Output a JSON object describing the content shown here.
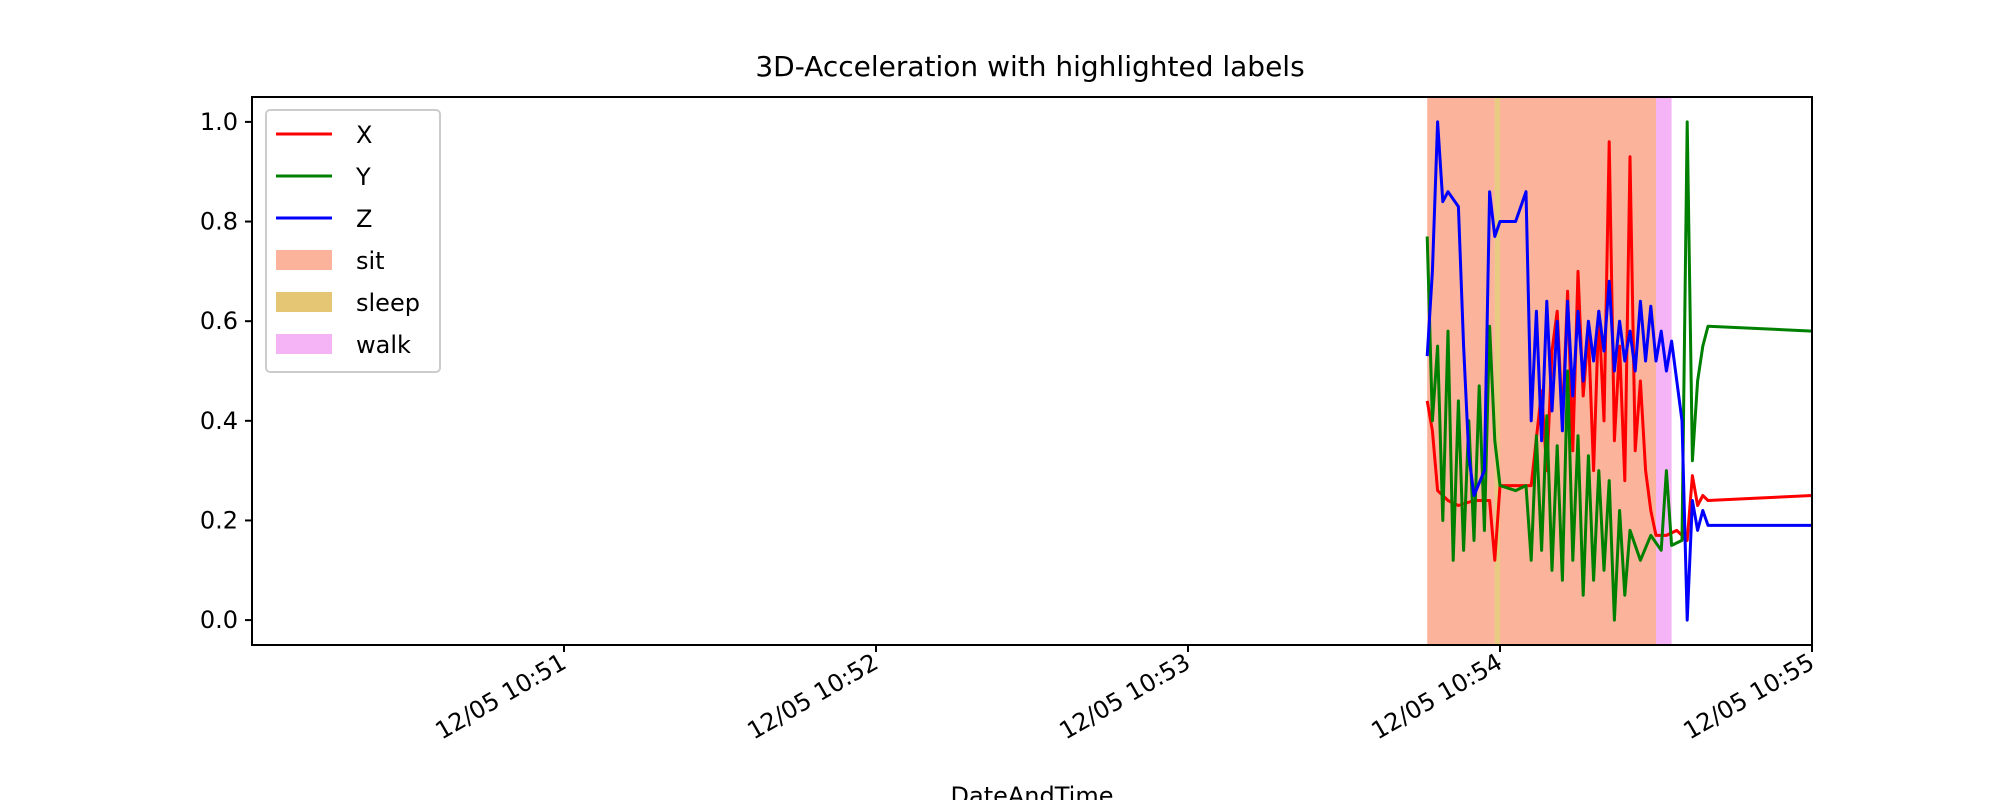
{
  "chart_data": {
    "type": "line",
    "title": "3D-Acceleration with highlighted labels",
    "xlabel": "DateAndTime",
    "ylabel": "",
    "x_range": [
      "12/05 10:50:00",
      "12/05 10:55:00"
    ],
    "ylim": [
      -0.05,
      1.05
    ],
    "x_tick_labels": [
      "12/05 10:51",
      "12/05 10:52",
      "12/05 10:53",
      "12/05 10:54",
      "12/05 10:55"
    ],
    "x_tick_positions": [
      "12/05 10:51:00",
      "12/05 10:52:00",
      "12/05 10:53:00",
      "12/05 10:54:00",
      "12/05 10:55:00"
    ],
    "y_ticks": [
      0.0,
      0.2,
      0.4,
      0.6,
      0.8,
      1.0
    ],
    "y_tick_labels": [
      "0.0",
      "0.2",
      "0.4",
      "0.6",
      "0.8",
      "1.0"
    ],
    "grid": false,
    "legend_position": "upper-left",
    "series": [
      {
        "name": "X",
        "color": "#ff0000",
        "points": [
          [
            "12/05 10:53:46",
            0.44
          ],
          [
            "12/05 10:53:47",
            0.38
          ],
          [
            "12/05 10:53:48",
            0.26
          ],
          [
            "12/05 10:53:50",
            0.24
          ],
          [
            "12/05 10:53:52",
            0.23
          ],
          [
            "12/05 10:53:55",
            0.24
          ],
          [
            "12/05 10:53:58",
            0.24
          ],
          [
            "12/05 10:53:59",
            0.12
          ],
          [
            "12/05 10:54:00",
            0.27
          ],
          [
            "12/05 10:54:03",
            0.27
          ],
          [
            "12/05 10:54:06",
            0.27
          ],
          [
            "12/05 10:54:08",
            0.46
          ],
          [
            "12/05 10:54:09",
            0.3
          ],
          [
            "12/05 10:54:10",
            0.54
          ],
          [
            "12/05 10:54:11",
            0.62
          ],
          [
            "12/05 10:54:12",
            0.4
          ],
          [
            "12/05 10:54:13",
            0.66
          ],
          [
            "12/05 10:54:14",
            0.34
          ],
          [
            "12/05 10:54:15",
            0.7
          ],
          [
            "12/05 10:54:16",
            0.45
          ],
          [
            "12/05 10:54:17",
            0.58
          ],
          [
            "12/05 10:54:18",
            0.3
          ],
          [
            "12/05 10:54:19",
            0.62
          ],
          [
            "12/05 10:54:20",
            0.4
          ],
          [
            "12/05 10:54:21",
            0.96
          ],
          [
            "12/05 10:54:22",
            0.36
          ],
          [
            "12/05 10:54:23",
            0.55
          ],
          [
            "12/05 10:54:24",
            0.28
          ],
          [
            "12/05 10:54:25",
            0.93
          ],
          [
            "12/05 10:54:26",
            0.34
          ],
          [
            "12/05 10:54:27",
            0.48
          ],
          [
            "12/05 10:54:28",
            0.3
          ],
          [
            "12/05 10:54:29",
            0.22
          ],
          [
            "12/05 10:54:30",
            0.17
          ],
          [
            "12/05 10:54:32",
            0.17
          ],
          [
            "12/05 10:54:34",
            0.18
          ],
          [
            "12/05 10:54:36",
            0.16
          ],
          [
            "12/05 10:54:37",
            0.29
          ],
          [
            "12/05 10:54:38",
            0.23
          ],
          [
            "12/05 10:54:39",
            0.25
          ],
          [
            "12/05 10:54:40",
            0.24
          ],
          [
            "12/05 10:54:50",
            0.245
          ],
          [
            "12/05 10:55:00",
            0.25
          ]
        ]
      },
      {
        "name": "Y",
        "color": "#008000",
        "points": [
          [
            "12/05 10:53:46",
            0.77
          ],
          [
            "12/05 10:53:47",
            0.4
          ],
          [
            "12/05 10:53:48",
            0.55
          ],
          [
            "12/05 10:53:49",
            0.2
          ],
          [
            "12/05 10:53:50",
            0.58
          ],
          [
            "12/05 10:53:51",
            0.12
          ],
          [
            "12/05 10:53:52",
            0.44
          ],
          [
            "12/05 10:53:53",
            0.14
          ],
          [
            "12/05 10:53:54",
            0.4
          ],
          [
            "12/05 10:53:55",
            0.16
          ],
          [
            "12/05 10:53:56",
            0.47
          ],
          [
            "12/05 10:53:57",
            0.18
          ],
          [
            "12/05 10:53:58",
            0.59
          ],
          [
            "12/05 10:53:59",
            0.36
          ],
          [
            "12/05 10:54:00",
            0.27
          ],
          [
            "12/05 10:54:03",
            0.26
          ],
          [
            "12/05 10:54:05",
            0.27
          ],
          [
            "12/05 10:54:06",
            0.12
          ],
          [
            "12/05 10:54:07",
            0.37
          ],
          [
            "12/05 10:54:08",
            0.14
          ],
          [
            "12/05 10:54:09",
            0.41
          ],
          [
            "12/05 10:54:10",
            0.1
          ],
          [
            "12/05 10:54:11",
            0.35
          ],
          [
            "12/05 10:54:12",
            0.08
          ],
          [
            "12/05 10:54:13",
            0.5
          ],
          [
            "12/05 10:54:14",
            0.12
          ],
          [
            "12/05 10:54:15",
            0.37
          ],
          [
            "12/05 10:54:16",
            0.05
          ],
          [
            "12/05 10:54:17",
            0.33
          ],
          [
            "12/05 10:54:18",
            0.08
          ],
          [
            "12/05 10:54:19",
            0.3
          ],
          [
            "12/05 10:54:20",
            0.1
          ],
          [
            "12/05 10:54:21",
            0.28
          ],
          [
            "12/05 10:54:22",
            0.0
          ],
          [
            "12/05 10:54:23",
            0.22
          ],
          [
            "12/05 10:54:24",
            0.05
          ],
          [
            "12/05 10:54:25",
            0.18
          ],
          [
            "12/05 10:54:27",
            0.12
          ],
          [
            "12/05 10:54:29",
            0.17
          ],
          [
            "12/05 10:54:31",
            0.14
          ],
          [
            "12/05 10:54:32",
            0.3
          ],
          [
            "12/05 10:54:33",
            0.15
          ],
          [
            "12/05 10:54:35",
            0.16
          ],
          [
            "12/05 10:54:36",
            1.0
          ],
          [
            "12/05 10:54:37",
            0.32
          ],
          [
            "12/05 10:54:38",
            0.48
          ],
          [
            "12/05 10:54:39",
            0.55
          ],
          [
            "12/05 10:54:40",
            0.59
          ],
          [
            "12/05 10:55:00",
            0.58
          ]
        ]
      },
      {
        "name": "Z",
        "color": "#0000ff",
        "points": [
          [
            "12/05 10:53:46",
            0.53
          ],
          [
            "12/05 10:53:47",
            0.7
          ],
          [
            "12/05 10:53:48",
            1.0
          ],
          [
            "12/05 10:53:49",
            0.84
          ],
          [
            "12/05 10:53:50",
            0.86
          ],
          [
            "12/05 10:53:52",
            0.83
          ],
          [
            "12/05 10:53:53",
            0.55
          ],
          [
            "12/05 10:53:54",
            0.33
          ],
          [
            "12/05 10:53:55",
            0.25
          ],
          [
            "12/05 10:53:57",
            0.3
          ],
          [
            "12/05 10:53:58",
            0.86
          ],
          [
            "12/05 10:53:59",
            0.77
          ],
          [
            "12/05 10:54:00",
            0.8
          ],
          [
            "12/05 10:54:03",
            0.8
          ],
          [
            "12/05 10:54:05",
            0.86
          ],
          [
            "12/05 10:54:06",
            0.4
          ],
          [
            "12/05 10:54:07",
            0.62
          ],
          [
            "12/05 10:54:08",
            0.36
          ],
          [
            "12/05 10:54:09",
            0.64
          ],
          [
            "12/05 10:54:10",
            0.42
          ],
          [
            "12/05 10:54:11",
            0.6
          ],
          [
            "12/05 10:54:12",
            0.38
          ],
          [
            "12/05 10:54:13",
            0.64
          ],
          [
            "12/05 10:54:14",
            0.45
          ],
          [
            "12/05 10:54:15",
            0.62
          ],
          [
            "12/05 10:54:16",
            0.48
          ],
          [
            "12/05 10:54:17",
            0.6
          ],
          [
            "12/05 10:54:18",
            0.52
          ],
          [
            "12/05 10:54:19",
            0.62
          ],
          [
            "12/05 10:54:20",
            0.54
          ],
          [
            "12/05 10:54:21",
            0.68
          ],
          [
            "12/05 10:54:22",
            0.5
          ],
          [
            "12/05 10:54:23",
            0.6
          ],
          [
            "12/05 10:54:24",
            0.52
          ],
          [
            "12/05 10:54:25",
            0.58
          ],
          [
            "12/05 10:54:26",
            0.5
          ],
          [
            "12/05 10:54:27",
            0.64
          ],
          [
            "12/05 10:54:28",
            0.52
          ],
          [
            "12/05 10:54:29",
            0.63
          ],
          [
            "12/05 10:54:30",
            0.52
          ],
          [
            "12/05 10:54:31",
            0.58
          ],
          [
            "12/05 10:54:32",
            0.5
          ],
          [
            "12/05 10:54:33",
            0.56
          ],
          [
            "12/05 10:54:34",
            0.48
          ],
          [
            "12/05 10:54:35",
            0.4
          ],
          [
            "12/05 10:54:36",
            0.0
          ],
          [
            "12/05 10:54:37",
            0.24
          ],
          [
            "12/05 10:54:38",
            0.18
          ],
          [
            "12/05 10:54:39",
            0.22
          ],
          [
            "12/05 10:54:40",
            0.19
          ],
          [
            "12/05 10:55:00",
            0.19
          ]
        ]
      }
    ],
    "highlighted_regions": [
      {
        "label": "sit",
        "color": "#fa8058",
        "alpha": 0.6,
        "start": "12/05 10:53:46",
        "end": "12/05 10:53:59"
      },
      {
        "label": "sleep",
        "color": "#d4a017",
        "alpha": 0.55,
        "start": "12/05 10:53:59",
        "end": "12/05 10:54:00"
      },
      {
        "label": "sit",
        "color": "#fa8058",
        "alpha": 0.6,
        "start": "12/05 10:54:00",
        "end": "12/05 10:54:30"
      },
      {
        "label": "walk",
        "color": "#ee82ee",
        "alpha": 0.6,
        "start": "12/05 10:54:30",
        "end": "12/05 10:54:33"
      }
    ],
    "legend_entries": [
      {
        "label": "X",
        "kind": "line",
        "color": "#ff0000"
      },
      {
        "label": "Y",
        "kind": "line",
        "color": "#008000"
      },
      {
        "label": "Z",
        "kind": "line",
        "color": "#0000ff"
      },
      {
        "label": "sit",
        "kind": "patch",
        "color": "#fa8058"
      },
      {
        "label": "sleep",
        "kind": "patch",
        "color": "#d4a017"
      },
      {
        "label": "walk",
        "kind": "patch",
        "color": "#ee82ee"
      }
    ]
  }
}
